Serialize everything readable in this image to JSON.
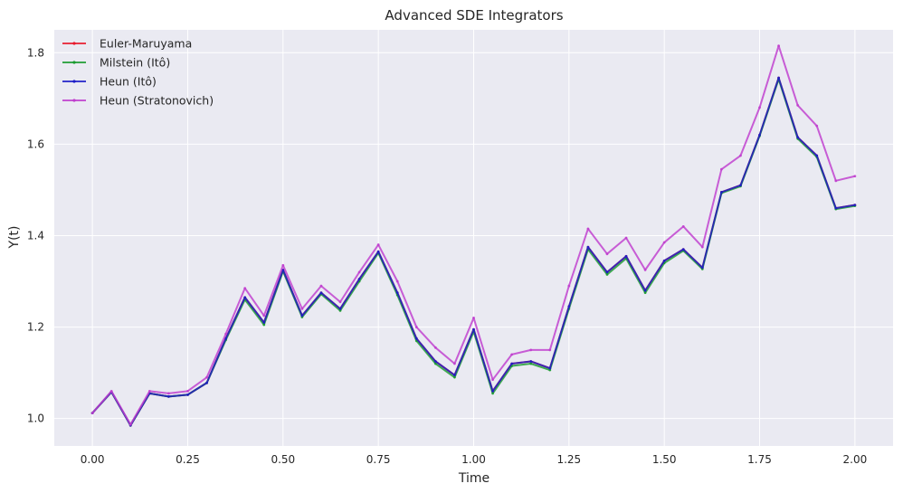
{
  "chart_data": {
    "type": "line",
    "title": "Advanced SDE Integrators",
    "xlabel": "Time",
    "ylabel": "Y(t)",
    "xlim": [
      -0.1,
      2.1
    ],
    "ylim": [
      0.94,
      1.85
    ],
    "xticks": [
      0.0,
      0.25,
      0.5,
      0.75,
      1.0,
      1.25,
      1.5,
      1.75,
      2.0
    ],
    "xtick_labels": [
      "0.00",
      "0.25",
      "0.50",
      "0.75",
      "1.00",
      "1.25",
      "1.50",
      "1.75",
      "2.00"
    ],
    "yticks": [
      1.0,
      1.2,
      1.4,
      1.6,
      1.8
    ],
    "ytick_labels": [
      "1.0",
      "1.2",
      "1.4",
      "1.6",
      "1.8"
    ],
    "grid": true,
    "legend_position": "top-left",
    "background": "#eaeaf2",
    "x": [
      0.0,
      0.05,
      0.1,
      0.15,
      0.2,
      0.25,
      0.3,
      0.35,
      0.4,
      0.45,
      0.5,
      0.55,
      0.6,
      0.65,
      0.7,
      0.75,
      0.8,
      0.85,
      0.9,
      0.95,
      1.0,
      1.05,
      1.1,
      1.15,
      1.2,
      1.25,
      1.3,
      1.35,
      1.4,
      1.45,
      1.5,
      1.55,
      1.6,
      1.65,
      1.7,
      1.75,
      1.8,
      1.85,
      1.9,
      1.95,
      2.0
    ],
    "series": [
      {
        "name": "Euler-Maruyama",
        "color": "#e8192c",
        "values": [
          1.012,
          1.058,
          0.985,
          1.055,
          1.048,
          1.052,
          1.078,
          1.175,
          1.265,
          1.21,
          1.325,
          1.225,
          1.275,
          1.24,
          1.305,
          1.365,
          1.275,
          1.175,
          1.125,
          1.095,
          1.195,
          1.06,
          1.12,
          1.125,
          1.11,
          1.245,
          1.375,
          1.32,
          1.355,
          1.28,
          1.345,
          1.37,
          1.33,
          1.495,
          1.51,
          1.62,
          1.745,
          1.615,
          1.575,
          1.46,
          1.467
        ]
      },
      {
        "name": "Milstein (Itô)",
        "color": "#1a9b2e",
        "values": [
          1.012,
          1.058,
          0.985,
          1.055,
          1.048,
          1.052,
          1.078,
          1.172,
          1.26,
          1.205,
          1.322,
          1.222,
          1.272,
          1.236,
          1.3,
          1.362,
          1.27,
          1.17,
          1.12,
          1.09,
          1.19,
          1.055,
          1.115,
          1.12,
          1.106,
          1.24,
          1.37,
          1.315,
          1.35,
          1.275,
          1.34,
          1.367,
          1.327,
          1.493,
          1.508,
          1.618,
          1.742,
          1.612,
          1.572,
          1.458,
          1.465
        ]
      },
      {
        "name": "Heun (Itô)",
        "color": "#1c1cc8",
        "values": [
          1.012,
          1.058,
          0.985,
          1.055,
          1.048,
          1.052,
          1.078,
          1.175,
          1.265,
          1.21,
          1.325,
          1.225,
          1.275,
          1.24,
          1.305,
          1.365,
          1.275,
          1.175,
          1.125,
          1.095,
          1.195,
          1.06,
          1.12,
          1.125,
          1.11,
          1.245,
          1.375,
          1.32,
          1.355,
          1.28,
          1.345,
          1.37,
          1.33,
          1.495,
          1.51,
          1.62,
          1.745,
          1.615,
          1.575,
          1.46,
          1.467
        ]
      },
      {
        "name": "Heun (Stratonovich)",
        "color": "#c03dce",
        "values": [
          1.012,
          1.06,
          0.987,
          1.06,
          1.055,
          1.06,
          1.09,
          1.185,
          1.285,
          1.225,
          1.335,
          1.24,
          1.29,
          1.255,
          1.32,
          1.38,
          1.3,
          1.2,
          1.155,
          1.12,
          1.22,
          1.085,
          1.14,
          1.15,
          1.15,
          1.29,
          1.415,
          1.36,
          1.395,
          1.325,
          1.385,
          1.42,
          1.375,
          1.545,
          1.575,
          1.68,
          1.815,
          1.685,
          1.64,
          1.52,
          1.53
        ]
      }
    ]
  }
}
